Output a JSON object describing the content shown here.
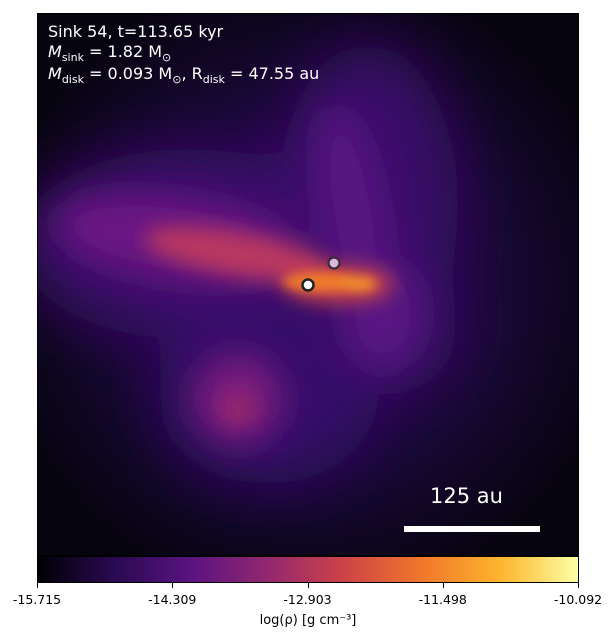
{
  "annotation": {
    "line1": "Sink 54, t=113.65 kyr",
    "line2_prefix": "M",
    "line2_sub": "sink",
    "line2_rest": " = 1.82 M",
    "line2_odot": "⊙",
    "line3_prefix": "M",
    "line3_sub": "disk",
    "line3_mid": " = 0.093 M",
    "line3_odot": "⊙",
    "line3_mid2": ", R",
    "line3_sub2": "disk",
    "line3_rest": " = 47.55 au"
  },
  "scale_bar": {
    "label": "125 au"
  },
  "colorbar": {
    "colormap": "plasma-like (black-purple-orange-yellow)",
    "stops": [
      "#000004",
      "#2a0a52",
      "#5b1380",
      "#94286f",
      "#cf4446",
      "#f1782a",
      "#fdb52e",
      "#fcffa4"
    ],
    "ticks": [
      "-15.715",
      "-14.309",
      "-12.903",
      "-11.498",
      "-10.092"
    ],
    "label": "log(ρ) [g cm⁻³]"
  },
  "chart_data": {
    "type": "heatmap",
    "title": "Sink 54, t=113.65 kyr",
    "colorbar_range": [
      -15.715,
      -10.092
    ],
    "colorbar_label": "log(ρ) [g cm⁻³]",
    "sinks": [
      {
        "name": "primary sink",
        "color": "#ffffff"
      },
      {
        "name": "secondary sink",
        "color": "#d9b9d9"
      }
    ]
  }
}
